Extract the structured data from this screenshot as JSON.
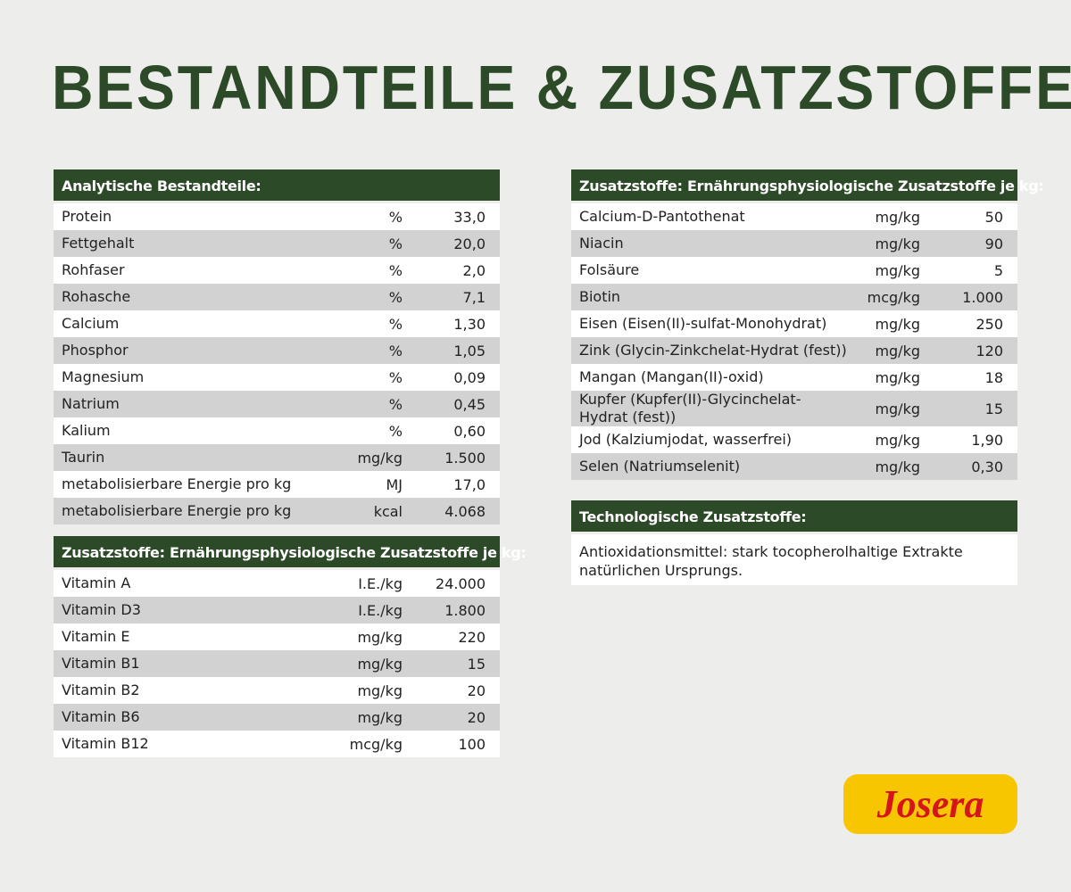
{
  "title": "BESTANDTEILE & ZUSATZSTOFFE",
  "tables": [
    {
      "header": "Analytische Bestandteile:",
      "rows": [
        [
          "Protein",
          "%",
          "33,0"
        ],
        [
          "Fettgehalt",
          "%",
          "20,0"
        ],
        [
          "Rohfaser",
          "%",
          "2,0"
        ],
        [
          "Rohasche",
          "%",
          "7,1"
        ],
        [
          "Calcium",
          "%",
          "1,30"
        ],
        [
          "Phosphor",
          "%",
          "1,05"
        ],
        [
          "Magnesium",
          "%",
          "0,09"
        ],
        [
          "Natrium",
          "%",
          "0,45"
        ],
        [
          "Kalium",
          "%",
          "0,60"
        ],
        [
          "Taurin",
          "mg/kg",
          "1.500"
        ],
        [
          "metabolisierbare Energie pro kg",
          "MJ",
          "17,0"
        ],
        [
          "metabolisierbare Energie pro kg",
          "kcal",
          "4.068"
        ]
      ]
    },
    {
      "header": "Zusatzstoffe: Ernährungsphysiologische Zusatzstoffe je kg:",
      "rows": [
        [
          "Vitamin A",
          "I.E./kg",
          "24.000"
        ],
        [
          "Vitamin D3",
          "I.E./kg",
          "1.800"
        ],
        [
          "Vitamin E",
          "mg/kg",
          "220"
        ],
        [
          "Vitamin B1",
          "mg/kg",
          "15"
        ],
        [
          "Vitamin B2",
          "mg/kg",
          "20"
        ],
        [
          "Vitamin B6",
          "mg/kg",
          "20"
        ],
        [
          "Vitamin B12",
          "mcg/kg",
          "100"
        ]
      ]
    },
    {
      "header": "Zusatzstoffe: Ernährungsphysiologische Zusatzstoffe je kg:",
      "rows": [
        [
          "Calcium-D-Pantothenat",
          "mg/kg",
          "50"
        ],
        [
          "Niacin",
          "mg/kg",
          "90"
        ],
        [
          "Folsäure",
          "mg/kg",
          "5"
        ],
        [
          "Biotin",
          "mcg/kg",
          "1.000"
        ],
        [
          "Eisen (Eisen(II)-sulfat-Monohydrat)",
          "mg/kg",
          "250"
        ],
        [
          "Zink (Glycin-Zinkchelat-Hydrat (fest))",
          "mg/kg",
          "120"
        ],
        [
          "Mangan (Mangan(II)-oxid)",
          "mg/kg",
          "18"
        ],
        [
          "Kupfer (Kupfer(II)-Glycinchelat-Hydrat (fest))",
          "mg/kg",
          "15"
        ],
        [
          "Jod (Kalziumjodat, wasserfrei)",
          "mg/kg",
          "1,90"
        ],
        [
          "Selen (Natriumselenit)",
          "mg/kg",
          "0,30"
        ]
      ]
    },
    {
      "header": "Technologische Zusatzstoffe:",
      "text": "Antioxidationsmittel: stark tocopherolhaltige Extrakte natürlichen Ursprungs."
    }
  ],
  "logo": "Josera"
}
